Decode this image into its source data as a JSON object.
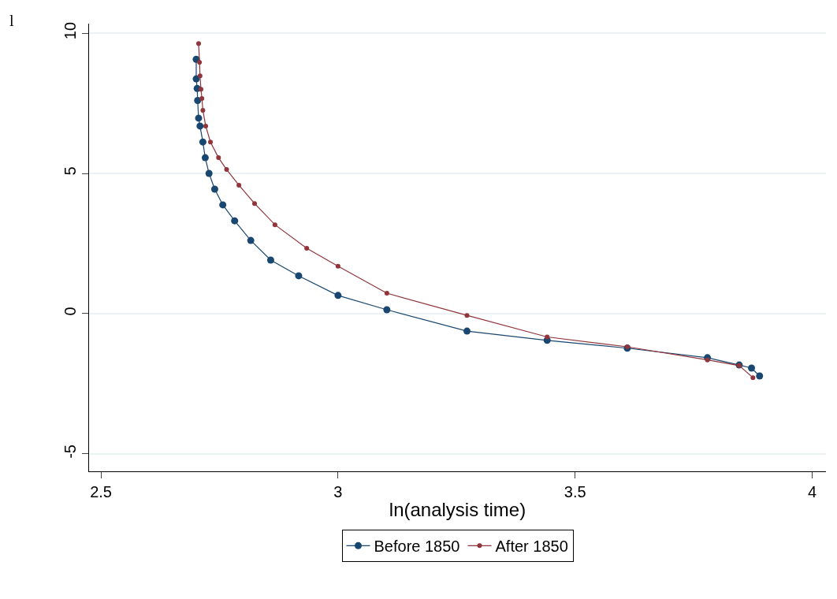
{
  "chart_data": {
    "type": "line",
    "xlabel": "ln(analysis time)",
    "annotations": [
      "l"
    ],
    "series": [
      {
        "name": "Before 1850",
        "color": "#1a476f",
        "x": [
          2.701,
          2.701,
          2.703,
          2.704,
          2.706,
          2.709,
          2.715,
          2.72,
          2.728,
          2.74,
          2.757,
          2.782,
          2.816,
          2.858,
          2.917,
          3.0,
          3.103,
          3.272,
          3.441,
          3.61,
          3.779,
          3.846,
          3.872,
          3.889
        ],
        "values": [
          9.07,
          8.37,
          8.03,
          7.6,
          6.97,
          6.69,
          6.12,
          5.56,
          5.0,
          4.44,
          3.88,
          3.31,
          2.61,
          1.91,
          1.35,
          0.65,
          0.14,
          -0.62,
          -0.95,
          -1.23,
          -1.57,
          -1.83,
          -1.94,
          -2.22
        ]
      },
      {
        "name": "After 1850",
        "color": "#90353b",
        "x": [
          2.706,
          2.708,
          2.709,
          2.711,
          2.713,
          2.715,
          2.721,
          2.731,
          2.748,
          2.765,
          2.791,
          2.824,
          2.867,
          2.934,
          3.0,
          3.103,
          3.272,
          3.441,
          3.61,
          3.779,
          3.846,
          3.875
        ],
        "values": [
          9.63,
          8.96,
          8.48,
          8.0,
          7.67,
          7.25,
          6.69,
          6.12,
          5.56,
          5.14,
          4.58,
          3.93,
          3.17,
          2.33,
          1.69,
          0.73,
          -0.06,
          -0.83,
          -1.18,
          -1.65,
          -1.85,
          -2.28
        ]
      }
    ],
    "xlim": [
      2.475,
      4.029
    ],
    "xticks": [
      2.5,
      3,
      3.5,
      4
    ],
    "ylim": [
      -5.62,
      10.34
    ],
    "yticks": [
      -5,
      0,
      5,
      10
    ],
    "grid": "y",
    "legend": "bottom",
    "marker": "circle",
    "line_style": "solid"
  }
}
